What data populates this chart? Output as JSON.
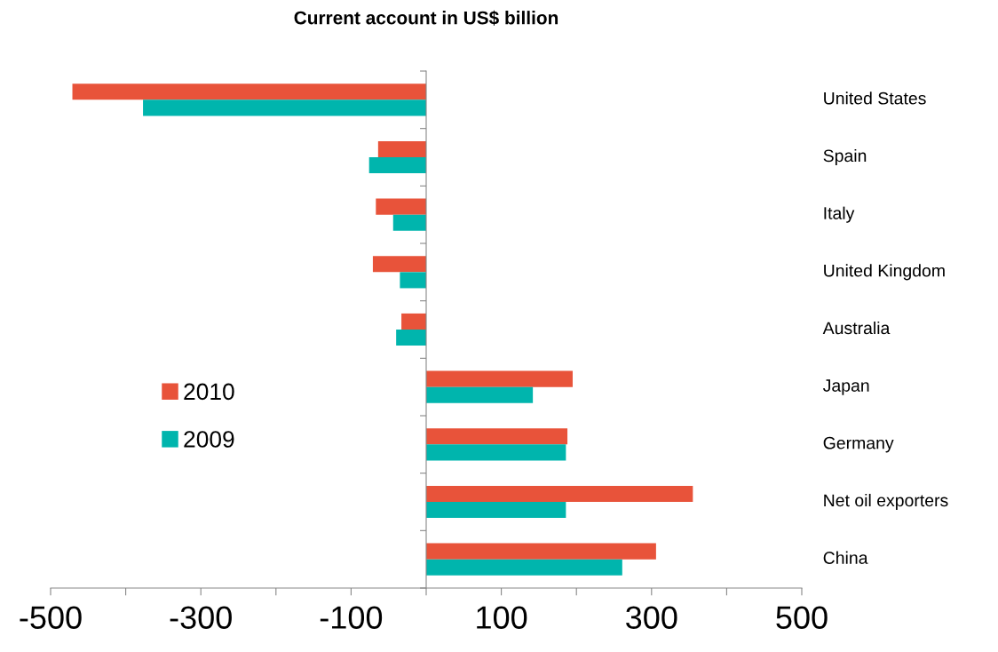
{
  "chart_data": {
    "type": "bar",
    "orientation": "horizontal",
    "title": "Current account in US$ billion",
    "categories": [
      "United States",
      "Spain",
      "Italy",
      "United Kingdom",
      "Australia",
      "Japan",
      "Germany",
      "Net oil exporters",
      "China"
    ],
    "series": [
      {
        "name": "2010",
        "color": "#e8533a",
        "values": [
          -471,
          -64,
          -67,
          -71,
          -33,
          195,
          188,
          355,
          306
        ]
      },
      {
        "name": "2009",
        "color": "#00b5ad",
        "values": [
          -377,
          -76,
          -44,
          -35,
          -40,
          142,
          186,
          186,
          261
        ]
      }
    ],
    "xlim": [
      -500,
      500
    ],
    "xticks": [
      -500,
      {
        "value": -400,
        "label": null
      },
      -300,
      {
        "value": -200,
        "label": null
      },
      -100,
      {
        "value": 0,
        "label": null
      },
      100,
      {
        "value": 200,
        "label": null
      },
      300,
      {
        "value": 400,
        "label": null
      },
      500
    ],
    "legend": "left"
  }
}
